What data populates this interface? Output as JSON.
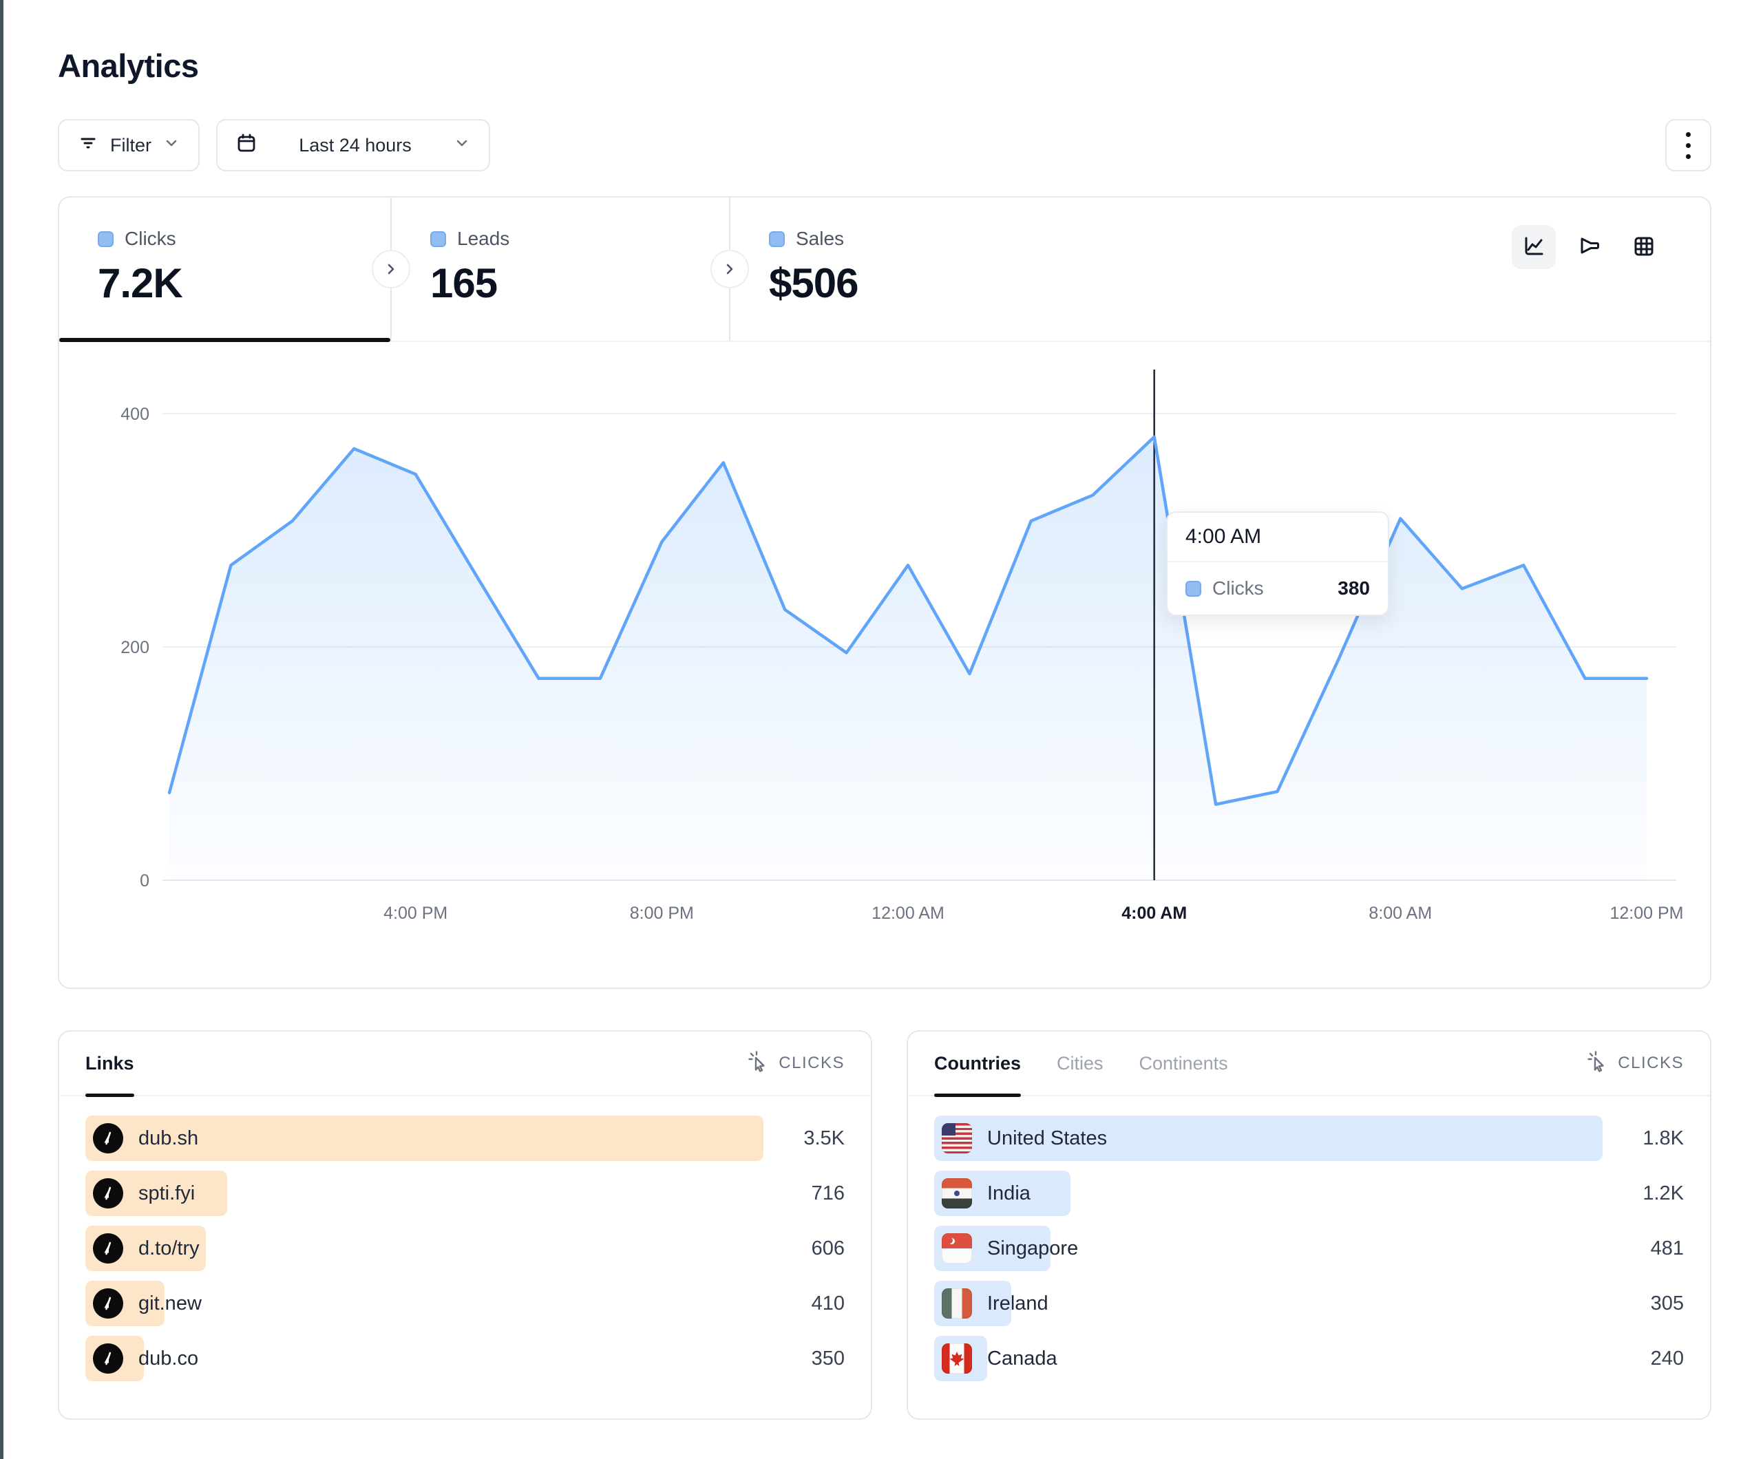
{
  "page": {
    "title": "Analytics"
  },
  "toolbar": {
    "filter_label": "Filter",
    "date_range_label": "Last 24 hours",
    "kebab_menu": "more-options"
  },
  "stats": {
    "tabs": [
      {
        "label": "Clicks",
        "value": "7.2K",
        "active": true
      },
      {
        "label": "Leads",
        "value": "165",
        "active": false
      },
      {
        "label": "Sales",
        "value": "$506",
        "active": false
      }
    ],
    "view_toggles": [
      "line-chart-view",
      "funnel-view",
      "table-view"
    ],
    "active_toggle": "line-chart-view"
  },
  "chart_data": {
    "type": "area",
    "title": "Clicks over last 24 hours",
    "x": [
      "12:00 PM",
      "1:00 PM",
      "2:00 PM",
      "3:00 PM",
      "4:00 PM",
      "5:00 PM",
      "6:00 PM",
      "7:00 PM",
      "8:00 PM",
      "9:00 PM",
      "10:00 PM",
      "11:00 PM",
      "12:00 AM",
      "1:00 AM",
      "2:00 AM",
      "3:00 AM",
      "4:00 AM",
      "5:00 AM",
      "6:00 AM",
      "7:00 AM",
      "8:00 AM",
      "9:00 AM",
      "10:00 AM",
      "11:00 AM",
      "12:00 PM"
    ],
    "series": [
      {
        "name": "Clicks",
        "values": [
          75,
          270,
          308,
          370,
          348,
          260,
          173,
          173,
          290,
          358,
          232,
          195,
          270,
          177,
          308,
          330,
          380,
          65,
          76,
          190,
          310,
          250,
          270,
          173,
          173
        ]
      }
    ],
    "xticks": [
      {
        "label": "4:00 PM",
        "index": 4,
        "bold": false
      },
      {
        "label": "8:00 PM",
        "index": 8,
        "bold": false
      },
      {
        "label": "12:00 AM",
        "index": 12,
        "bold": false
      },
      {
        "label": "4:00 AM",
        "index": 16,
        "bold": true
      },
      {
        "label": "8:00 AM",
        "index": 20,
        "bold": false
      },
      {
        "label": "12:00 PM",
        "index": 24,
        "bold": false
      }
    ],
    "yticks": [
      0,
      200,
      400
    ],
    "ylim": [
      0,
      400
    ],
    "grid": true,
    "legend_position": "none",
    "highlight": {
      "index": 16,
      "label": "4:00 AM",
      "value": 380
    },
    "line_color": "#60a5fa",
    "area_color_top": "rgba(96,165,250,0.22)",
    "area_color_bottom": "rgba(96,165,250,0.02)",
    "crosshair_color": "#1f2937"
  },
  "tooltip": {
    "time": "4:00 AM",
    "series": "Clicks",
    "value": "380"
  },
  "links_panel": {
    "title": "Links",
    "metric_label": "CLICKS",
    "rows": [
      {
        "label": "dub.sh",
        "value": "3.5K",
        "bar_pct": 100
      },
      {
        "label": "spti.fyi",
        "value": "716",
        "bar_pct": 20.9
      },
      {
        "label": "d.to/try",
        "value": "606",
        "bar_pct": 17.8
      },
      {
        "label": "git.new",
        "value": "410",
        "bar_pct": 11.7
      },
      {
        "label": "dub.co",
        "value": "350",
        "bar_pct": 8.6
      }
    ]
  },
  "geo_panel": {
    "tabs": [
      {
        "label": "Countries",
        "active": true
      },
      {
        "label": "Cities",
        "active": false
      },
      {
        "label": "Continents",
        "active": false
      }
    ],
    "metric_label": "CLICKS",
    "rows": [
      {
        "label": "United States",
        "value": "1.8K",
        "bar_pct": 100,
        "flag": "us"
      },
      {
        "label": "India",
        "value": "1.2K",
        "bar_pct": 20.4,
        "flag": "in"
      },
      {
        "label": "Singapore",
        "value": "481",
        "bar_pct": 17.4,
        "flag": "sg"
      },
      {
        "label": "Ireland",
        "value": "305",
        "bar_pct": 11.5,
        "flag": "ie"
      },
      {
        "label": "Canada",
        "value": "240",
        "bar_pct": 7.9,
        "flag": "ca"
      }
    ]
  },
  "colors": {
    "accent_blue": "#60a5fa",
    "chip_blue": "#92bdf2",
    "links_bar": "#fce5c9",
    "geo_bar": "#dbe9fd",
    "border": "#e5e7eb",
    "text_primary": "#111827",
    "text_secondary": "#6b7280",
    "edge_strip": "#44565c"
  }
}
